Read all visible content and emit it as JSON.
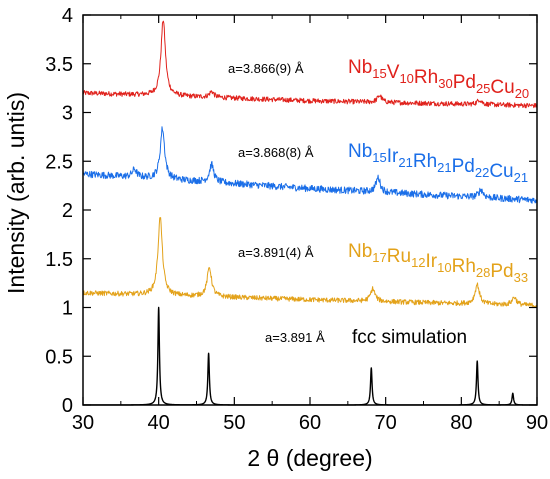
{
  "chart_data": {
    "type": "line",
    "xlabel": "2 θ (degree)",
    "ylabel": "Intensity (arb. untis)",
    "xlim": [
      30,
      90
    ],
    "ylim": [
      0,
      4
    ],
    "xticks": [
      "30",
      "40",
      "50",
      "60",
      "70",
      "80",
      "90"
    ],
    "yticks": [
      "0",
      "0.5",
      "1",
      "1.5",
      "2",
      "2.5",
      "3",
      "3.5",
      "4"
    ],
    "grid": false,
    "series": [
      {
        "color": "#e0221c",
        "lattice_label": "a=3.866(9) Å",
        "composition": [
          [
            "Nb",
            "15"
          ],
          [
            "V",
            "10"
          ],
          [
            "Rh",
            "30"
          ],
          [
            "Pd",
            "25"
          ],
          [
            "Cu",
            "20"
          ]
        ],
        "baseline": [
          [
            30,
            3.2
          ],
          [
            60,
            3.12
          ],
          [
            90,
            3.07
          ]
        ],
        "peaks": [
          [
            40.6,
            0.78
          ],
          [
            47.0,
            0.06
          ],
          [
            69.2,
            0.07
          ],
          [
            82.4,
            0.05
          ]
        ],
        "noise": 0.025
      },
      {
        "color": "#1a6ee8",
        "lattice_label": "a=3.868(8) Å",
        "composition": [
          [
            "Nb",
            "15"
          ],
          [
            "Ir",
            "21"
          ],
          [
            "Rh",
            "21"
          ],
          [
            "Pd",
            "22"
          ],
          [
            "Cu",
            "21"
          ]
        ],
        "baseline": [
          [
            30,
            2.37
          ],
          [
            60,
            2.22
          ],
          [
            90,
            2.1
          ]
        ],
        "peaks": [
          [
            36.8,
            0.08
          ],
          [
            40.5,
            0.52
          ],
          [
            47.0,
            0.18
          ],
          [
            69.0,
            0.15
          ],
          [
            82.6,
            0.08
          ]
        ],
        "noise": 0.035
      },
      {
        "color": "#e3a21a",
        "lattice_label": "a=3.891(4) Å",
        "composition": [
          [
            "Nb",
            "17"
          ],
          [
            "Ru",
            "12"
          ],
          [
            "Ir",
            "10"
          ],
          [
            "Rh",
            "28"
          ],
          [
            "Pd",
            "33"
          ]
        ],
        "baseline": [
          [
            30,
            1.15
          ],
          [
            60,
            1.08
          ],
          [
            90,
            1.02
          ]
        ],
        "peaks": [
          [
            40.2,
            0.8
          ],
          [
            46.7,
            0.3
          ],
          [
            68.3,
            0.13
          ],
          [
            82.1,
            0.2
          ],
          [
            87.0,
            0.08
          ]
        ],
        "noise": 0.025
      },
      {
        "color": "#000000",
        "lattice_label": "a=3.891 Å",
        "label": "fcc simulation",
        "baseline": [
          [
            30,
            0.0
          ],
          [
            90,
            0.0
          ]
        ],
        "peaks": [
          [
            40.0,
            1.0
          ],
          [
            46.6,
            0.53
          ],
          [
            68.1,
            0.38
          ],
          [
            82.1,
            0.45
          ],
          [
            86.8,
            0.12
          ]
        ],
        "noise": 0
      }
    ]
  }
}
